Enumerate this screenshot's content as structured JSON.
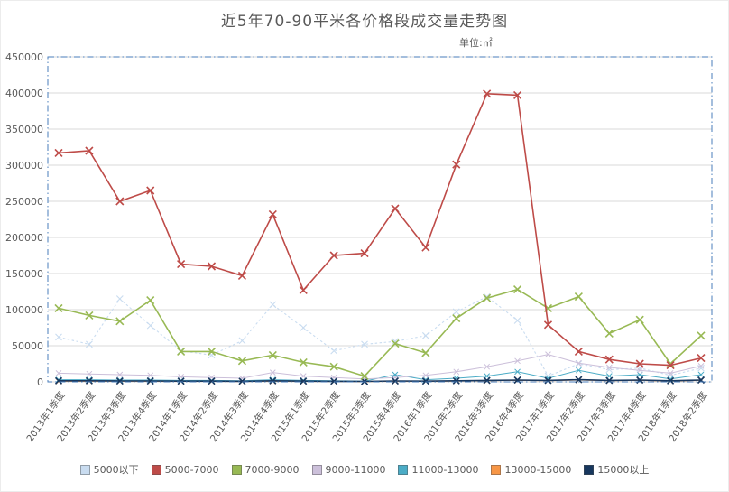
{
  "title": "近5年70-90平米各价格段成交量走势图",
  "unit_label": "单位:㎡",
  "chart_data": {
    "type": "line",
    "title": "近5年70-90平米各价格段成交量走势图",
    "subtitle": "单位:㎡",
    "xlabel": "",
    "ylabel": "",
    "ylim": [
      0,
      450000
    ],
    "ytick_step": 50000,
    "grid": true,
    "legend_position": "bottom",
    "marker": "x",
    "axis_text_color": "#595959",
    "gridline_color": "#d9d9d9",
    "plot_border_color": "#4a7ebb",
    "categories": [
      "2013年1季度",
      "2013年2季度",
      "2013年3季度",
      "2013年4季度",
      "2014年1季度",
      "2014年2季度",
      "2014年3季度",
      "2014年4季度",
      "2015年1季度",
      "2015年2季度",
      "2015年3季度",
      "2015年4季度",
      "2016年1季度",
      "2016年2季度",
      "2016年3季度",
      "2016年4季度",
      "2017年1季度",
      "2017年2季度",
      "2017年3季度",
      "2017年4季度",
      "2018年1季度",
      "2018年2季度"
    ],
    "series": [
      {
        "name": "5000以下",
        "color": "#c9dcf0",
        "line_style": "dotted",
        "values": [
          62000,
          52000,
          115000,
          78000,
          43000,
          37000,
          57000,
          107000,
          75000,
          43000,
          52000,
          56000,
          64000,
          97000,
          118000,
          85000,
          8000,
          25000,
          17000,
          19000,
          9000,
          19000
        ]
      },
      {
        "name": "5000-7000",
        "color": "#be4b48",
        "line_style": "solid",
        "values": [
          317000,
          320000,
          250000,
          265000,
          163000,
          160000,
          147000,
          232000,
          127000,
          175000,
          178000,
          240000,
          186000,
          301000,
          399000,
          397000,
          79000,
          42000,
          31000,
          25000,
          23000,
          33000
        ]
      },
      {
        "name": "7000-9000",
        "color": "#98b954",
        "line_style": "solid",
        "values": [
          102000,
          92000,
          84000,
          113000,
          42000,
          42000,
          29000,
          37000,
          27000,
          21000,
          8000,
          53000,
          40000,
          88000,
          116000,
          128000,
          102000,
          118000,
          67000,
          86000,
          25000,
          64000
        ]
      },
      {
        "name": "9000-11000",
        "color": "#ccc0da",
        "line_style": "solid",
        "values": [
          12000,
          11000,
          10000,
          9000,
          7000,
          6000,
          5000,
          13000,
          8000,
          6000,
          4000,
          6000,
          9000,
          14000,
          21000,
          29000,
          38000,
          26000,
          20000,
          16000,
          12000,
          22000
        ]
      },
      {
        "name": "11000-13000",
        "color": "#4bacc6",
        "line_style": "solid",
        "values": [
          3000,
          3000,
          2500,
          2500,
          2000,
          2000,
          1500,
          3000,
          2000,
          1500,
          1000,
          10000,
          3000,
          5000,
          8000,
          14000,
          5000,
          16000,
          8000,
          10000,
          4000,
          10000
        ]
      },
      {
        "name": "13000-15000",
        "color": "#f79646",
        "line_style": "solid",
        "values": [
          800,
          800,
          700,
          700,
          600,
          600,
          500,
          800,
          600,
          500,
          400,
          800,
          700,
          1000,
          1500,
          2000,
          1500,
          2500,
          1500,
          2000,
          1000,
          2000
        ]
      },
      {
        "name": "15000以上",
        "color": "#17375e",
        "line_style": "solid",
        "values": [
          1500,
          1500,
          1200,
          1200,
          1000,
          1000,
          800,
          1500,
          1000,
          800,
          600,
          1200,
          1000,
          1500,
          2000,
          2500,
          2000,
          3000,
          2000,
          2500,
          1500,
          2500
        ]
      }
    ]
  }
}
